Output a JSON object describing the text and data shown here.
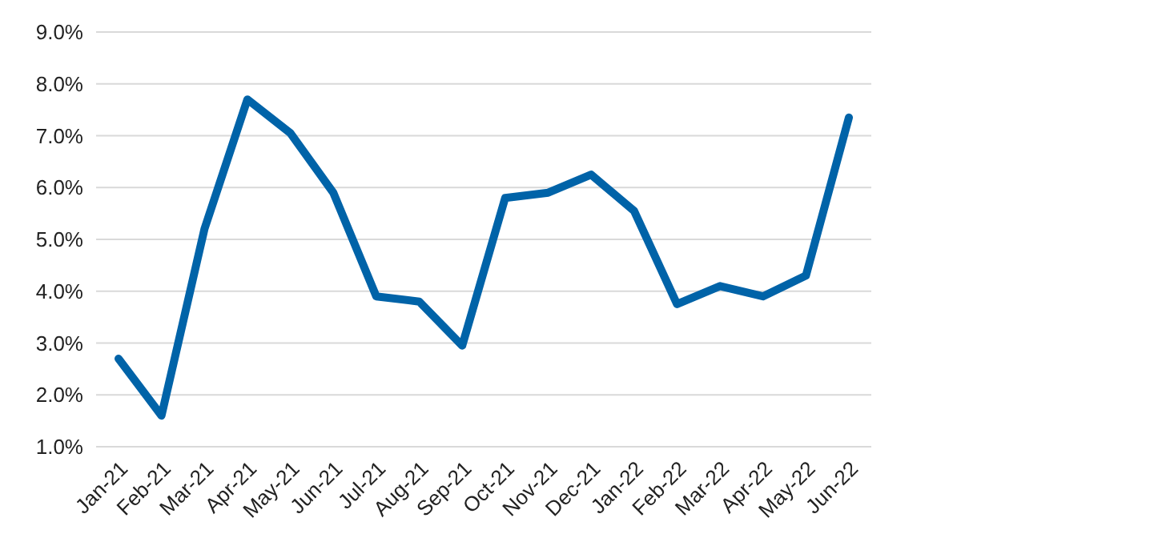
{
  "chart_data": {
    "type": "line",
    "categories": [
      "Jan-21",
      "Feb-21",
      "Mar-21",
      "Apr-21",
      "May-21",
      "Jun-21",
      "Jul-21",
      "Aug-21",
      "Sep-21",
      "Oct-21",
      "Nov-21",
      "Dec-21",
      "Jan-22",
      "Feb-22",
      "Mar-22",
      "Apr-22",
      "May-22",
      "Jun-22"
    ],
    "series": [
      {
        "color": "#0063a8",
        "values": [
          2.7,
          1.6,
          5.2,
          7.7,
          7.05,
          5.9,
          3.9,
          3.8,
          2.95,
          5.8,
          5.9,
          6.25,
          5.55,
          3.75,
          4.1,
          3.9,
          4.3,
          7.35
        ]
      }
    ],
    "ylim": [
      1,
      9
    ],
    "yticks": [
      {
        "value": 1,
        "label": "1.0%"
      },
      {
        "value": 2,
        "label": "2.0%"
      },
      {
        "value": 3,
        "label": "3.0%"
      },
      {
        "value": 4,
        "label": "4.0%"
      },
      {
        "value": 5,
        "label": "5.0%"
      },
      {
        "value": 6,
        "label": "6.0%"
      },
      {
        "value": 7,
        "label": "7.0%"
      },
      {
        "value": 8,
        "label": "8.0%"
      },
      {
        "value": 9,
        "label": "9.0%"
      }
    ],
    "grid": "y",
    "marker": "none",
    "line_style": "solid"
  }
}
